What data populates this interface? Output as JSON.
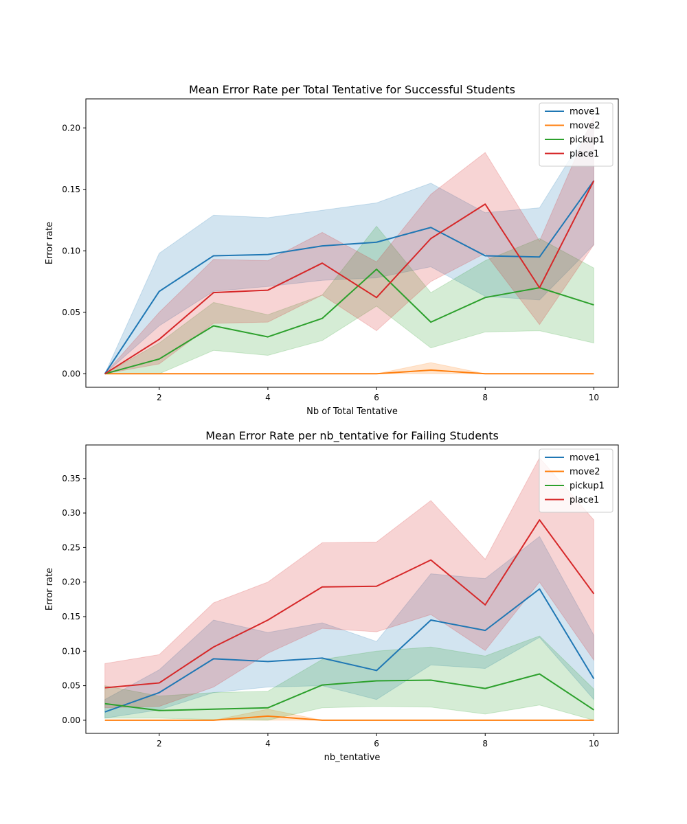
{
  "chart_data": [
    {
      "type": "line",
      "title": "Mean Error Rate per Total Tentative for Successful Students",
      "xlabel": "Nb of Total Tentative",
      "ylabel": "Error rate",
      "xlim": [
        0.65,
        10.45
      ],
      "ylim": [
        -0.011,
        0.2236
      ],
      "xticks": [
        2,
        4,
        6,
        8,
        10
      ],
      "yticks": [
        0.0,
        0.05,
        0.1,
        0.15,
        0.2
      ],
      "xtick_labels": [
        "2",
        "4",
        "6",
        "8",
        "10"
      ],
      "ytick_labels": [
        "0.00",
        "0.05",
        "0.10",
        "0.15",
        "0.20"
      ],
      "legend": "top-right",
      "grid": false,
      "x": [
        1,
        2,
        3,
        4,
        5,
        6,
        7,
        8,
        9,
        10
      ],
      "series": [
        {
          "name": "move1",
          "color": "#1f77b4",
          "values": [
            0.0,
            0.067,
            0.096,
            0.097,
            0.104,
            0.107,
            0.119,
            0.096,
            0.095,
            0.157
          ],
          "lower": [
            0.0,
            0.039,
            0.067,
            0.071,
            0.076,
            0.078,
            0.087,
            0.063,
            0.06,
            0.105
          ],
          "upper": [
            0.0,
            0.098,
            0.129,
            0.127,
            0.133,
            0.139,
            0.155,
            0.131,
            0.135,
            0.206
          ]
        },
        {
          "name": "move2",
          "color": "#ff7f0e",
          "values": [
            0.0,
            0.0,
            0.0,
            0.0,
            0.0,
            0.0,
            0.003,
            0.0,
            0.0,
            0.0
          ],
          "lower": [
            0.0,
            0.0,
            0.0,
            0.0,
            0.0,
            0.0,
            0.0,
            0.0,
            0.0,
            0.0
          ],
          "upper": [
            0.0,
            0.0,
            0.0,
            0.0,
            0.0,
            0.0,
            0.009,
            0.0,
            0.0,
            0.0
          ]
        },
        {
          "name": "pickup1",
          "color": "#2ca02c",
          "values": [
            0.0,
            0.012,
            0.039,
            0.03,
            0.045,
            0.085,
            0.042,
            0.062,
            0.07,
            0.056
          ],
          "lower": [
            0.0,
            0.0,
            0.019,
            0.015,
            0.027,
            0.055,
            0.021,
            0.034,
            0.035,
            0.025
          ],
          "upper": [
            0.0,
            0.025,
            0.058,
            0.048,
            0.064,
            0.12,
            0.066,
            0.092,
            0.11,
            0.086
          ]
        },
        {
          "name": "place1",
          "color": "#d62728",
          "values": [
            0.0,
            0.028,
            0.066,
            0.068,
            0.09,
            0.062,
            0.11,
            0.138,
            0.07,
            0.157
          ],
          "lower": [
            0.0,
            0.008,
            0.041,
            0.042,
            0.064,
            0.035,
            0.075,
            0.098,
            0.04,
            0.105
          ],
          "upper": [
            0.0,
            0.05,
            0.093,
            0.092,
            0.115,
            0.091,
            0.146,
            0.18,
            0.108,
            0.21
          ]
        }
      ]
    },
    {
      "type": "line",
      "title": "Mean Error Rate per nb_tentative for Failing Students",
      "xlabel": "nb_tentative",
      "ylabel": "Error rate",
      "xlim": [
        0.65,
        10.45
      ],
      "ylim": [
        -0.019,
        0.3985
      ],
      "xticks": [
        2,
        4,
        6,
        8,
        10
      ],
      "yticks": [
        0.0,
        0.05,
        0.1,
        0.15,
        0.2,
        0.25,
        0.3,
        0.35
      ],
      "xtick_labels": [
        "2",
        "4",
        "6",
        "8",
        "10"
      ],
      "ytick_labels": [
        "0.00",
        "0.05",
        "0.10",
        "0.15",
        "0.20",
        "0.25",
        "0.30",
        "0.35"
      ],
      "legend": "top-right",
      "grid": false,
      "x": [
        1,
        2,
        3,
        4,
        5,
        6,
        7,
        8,
        9,
        10
      ],
      "series": [
        {
          "name": "move1",
          "color": "#1f77b4",
          "values": [
            0.012,
            0.04,
            0.089,
            0.085,
            0.09,
            0.072,
            0.145,
            0.13,
            0.19,
            0.06
          ],
          "lower": [
            0.003,
            0.015,
            0.04,
            0.048,
            0.05,
            0.03,
            0.08,
            0.075,
            0.12,
            0.03
          ],
          "upper": [
            0.03,
            0.073,
            0.145,
            0.127,
            0.141,
            0.114,
            0.212,
            0.205,
            0.266,
            0.123
          ]
        },
        {
          "name": "move2",
          "color": "#ff7f0e",
          "values": [
            0.0,
            0.0,
            0.0,
            0.006,
            0.0,
            0.0,
            0.0,
            0.0,
            0.0,
            0.0
          ],
          "lower": [
            0.0,
            0.0,
            0.0,
            0.0,
            0.0,
            0.0,
            0.0,
            0.0,
            0.0,
            0.0
          ],
          "upper": [
            0.0,
            0.0,
            0.0,
            0.016,
            0.0,
            0.0,
            0.0,
            0.0,
            0.0,
            0.0
          ]
        },
        {
          "name": "pickup1",
          "color": "#2ca02c",
          "values": [
            0.024,
            0.014,
            0.016,
            0.018,
            0.051,
            0.057,
            0.058,
            0.046,
            0.067,
            0.015
          ],
          "lower": [
            0.003,
            0.003,
            0.001,
            0.0,
            0.018,
            0.02,
            0.019,
            0.009,
            0.022,
            0.0
          ],
          "upper": [
            0.05,
            0.035,
            0.04,
            0.042,
            0.088,
            0.1,
            0.106,
            0.093,
            0.122,
            0.045
          ]
        },
        {
          "name": "place1",
          "color": "#d62728",
          "values": [
            0.047,
            0.054,
            0.106,
            0.145,
            0.193,
            0.194,
            0.232,
            0.167,
            0.29,
            0.183
          ],
          "lower": [
            0.018,
            0.02,
            0.048,
            0.097,
            0.133,
            0.128,
            0.153,
            0.101,
            0.2,
            0.087
          ],
          "upper": [
            0.082,
            0.095,
            0.17,
            0.2,
            0.257,
            0.258,
            0.318,
            0.233,
            0.38,
            0.29
          ]
        }
      ]
    }
  ]
}
